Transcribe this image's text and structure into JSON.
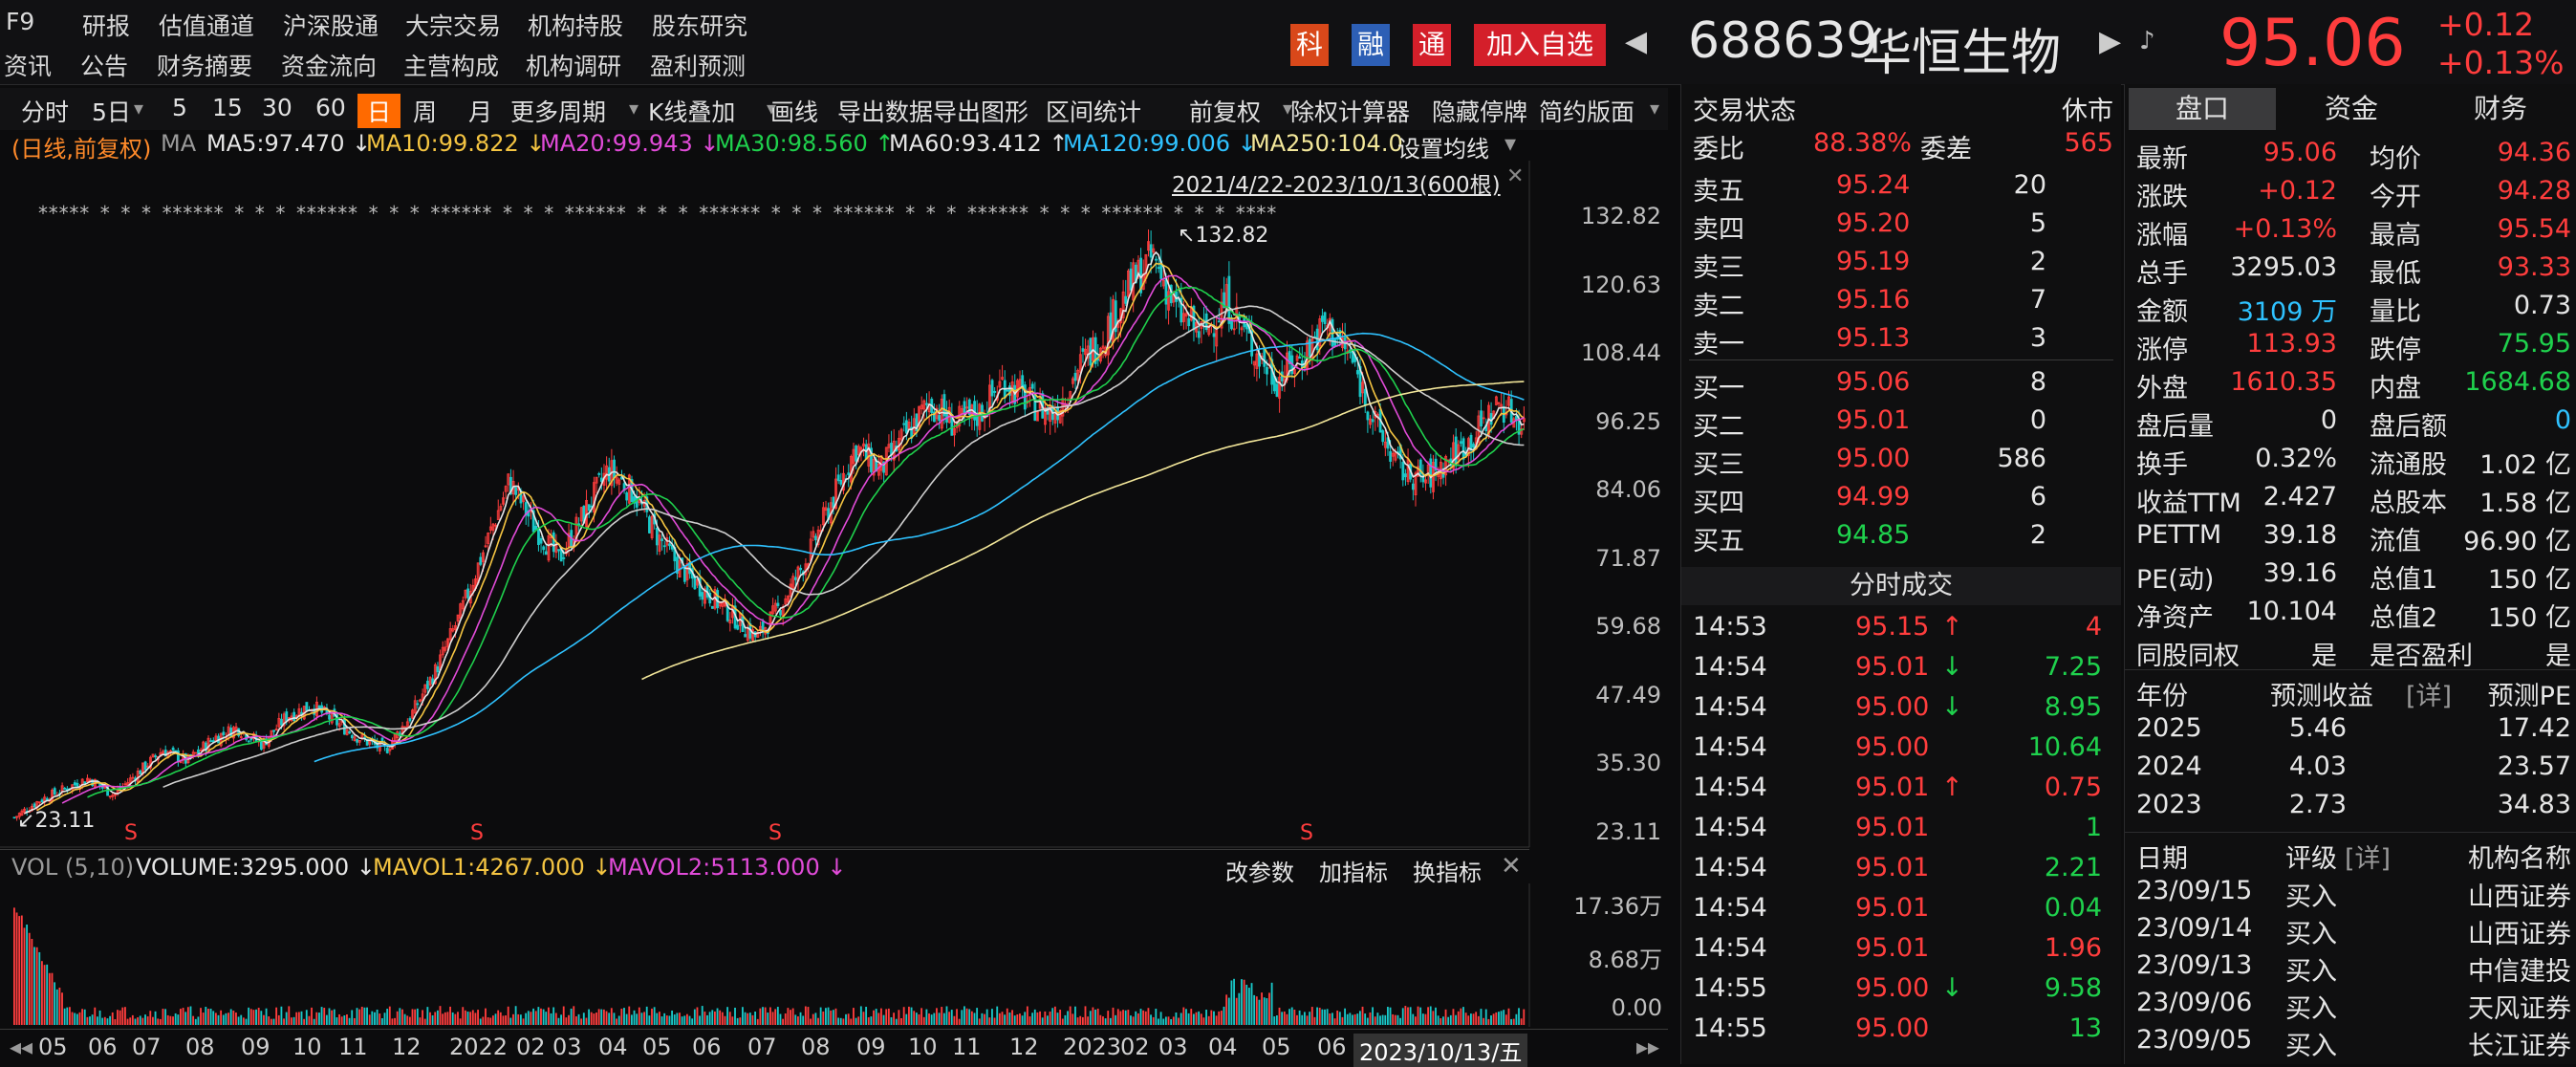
{
  "header": {
    "nav_row1": [
      "F9",
      "研报",
      "估值通道",
      "沪深股通",
      "大宗交易",
      "机构持股",
      "股东研究"
    ],
    "nav_row2": [
      "资讯",
      "公告",
      "财务摘要",
      "资金流向",
      "主营构成",
      "机构调研",
      "盈利预测"
    ],
    "badges": [
      "科",
      "融",
      "通"
    ],
    "add_watch": "加入自选",
    "code": "688639",
    "name": "华恒生物",
    "price": "95.06",
    "change": "+0.12",
    "change_pct": "+0.13%",
    "colors": {
      "up": "#ff3d3d",
      "down": "#1fd14d",
      "accent": "#ff6a00"
    }
  },
  "toolbar": {
    "items": [
      "分时",
      "5日",
      "5",
      "15",
      "30",
      "60",
      "日",
      "周",
      "月",
      "更多周期",
      "K线叠加",
      "画线",
      "导出数据",
      "导出图形",
      "区间统计",
      "前复权",
      "除权计算器",
      "隐藏停牌",
      "简约版面"
    ],
    "active": "日"
  },
  "ma_legend": {
    "mode": "(日线,前复权)",
    "ma": "MA",
    "ma5": "MA5:97.470 ↓",
    "ma10": "MA10:99.822 ↓",
    "ma20": "MA20:99.943 ↓",
    "ma30": "MA30:98.560 ↑",
    "ma60": "MA60:93.412 ↑",
    "ma120": "MA120:99.006 ↓",
    "ma250": "MA250:104.0",
    "set_ma": "设置均线",
    "range": "2021/4/22-2023/10/13(600根)",
    "high_mark": "132.82",
    "low_mark": "23.11"
  },
  "chart_data": {
    "type": "candlestick",
    "ytick_labels": [
      "132.82",
      "120.63",
      "108.44",
      "96.25",
      "84.06",
      "71.87",
      "59.68",
      "47.49",
      "35.30",
      "23.11"
    ],
    "ylim": [
      23.11,
      132.82
    ],
    "x_labels": [
      "05",
      "06",
      "07",
      "08",
      "09",
      "10",
      "11",
      "12",
      "2022",
      "02",
      "03",
      "04",
      "05",
      "06",
      "07",
      "08",
      "09",
      "10",
      "11",
      "12",
      "2023",
      "02",
      "03",
      "04",
      "05",
      "06",
      "2023/10/13/五"
    ],
    "price_path": [
      26,
      29,
      31,
      33,
      30,
      34,
      38,
      36,
      40,
      42,
      39,
      44,
      46,
      43,
      40,
      38,
      44,
      52,
      62,
      74,
      86,
      78,
      72,
      80,
      88,
      84,
      76,
      70,
      66,
      62,
      58,
      64,
      72,
      82,
      92,
      88,
      94,
      100,
      96,
      98,
      104,
      100,
      98,
      106,
      112,
      120,
      126,
      116,
      112,
      118,
      110,
      104,
      108,
      114,
      108,
      96,
      88,
      86,
      90,
      94,
      100,
      96
    ],
    "ma_lines": [
      "MA5",
      "MA10",
      "MA20",
      "MA30",
      "MA60",
      "MA120",
      "MA250"
    ]
  },
  "volume": {
    "label": "VOL",
    "params": "(5,10)",
    "volume": "VOLUME:3295.000 ↓",
    "mavol1": "MAVOL1:4267.000 ↓",
    "mavol2": "MAVOL2:5113.000 ↓",
    "tools": [
      "改参数",
      "加指标",
      "换指标"
    ],
    "ticks": [
      "17.36万",
      "8.68万",
      "0.00"
    ]
  },
  "orderbook": {
    "status_label": "交易状态",
    "status_value": "休市",
    "weibi_label": "委比",
    "weibi_value": "88.38%",
    "weicha_label": "委差",
    "weicha_value": "565",
    "asks": [
      {
        "label": "卖五",
        "price": "95.24",
        "vol": "20"
      },
      {
        "label": "卖四",
        "price": "95.20",
        "vol": "5"
      },
      {
        "label": "卖三",
        "price": "95.19",
        "vol": "2"
      },
      {
        "label": "卖二",
        "price": "95.16",
        "vol": "7"
      },
      {
        "label": "卖一",
        "price": "95.13",
        "vol": "3"
      }
    ],
    "bids": [
      {
        "label": "买一",
        "price": "95.06",
        "vol": "8"
      },
      {
        "label": "买二",
        "price": "95.01",
        "vol": "0"
      },
      {
        "label": "买三",
        "price": "95.00",
        "vol": "586"
      },
      {
        "label": "买四",
        "price": "94.99",
        "vol": "6"
      },
      {
        "label": "买五",
        "price": "94.85",
        "vol": "2"
      }
    ],
    "ticks_title": "分时成交",
    "ticks": [
      {
        "time": "14:53",
        "price": "95.15",
        "arrow": "↑",
        "vol": "4",
        "color": "red"
      },
      {
        "time": "14:54",
        "price": "95.01",
        "arrow": "↓",
        "vol": "7.25",
        "color": "grn"
      },
      {
        "time": "14:54",
        "price": "95.00",
        "arrow": "↓",
        "vol": "8.95",
        "color": "grn"
      },
      {
        "time": "14:54",
        "price": "95.00",
        "arrow": "",
        "vol": "10.64",
        "color": "grn"
      },
      {
        "time": "14:54",
        "price": "95.01",
        "arrow": "↑",
        "vol": "0.75",
        "color": "red"
      },
      {
        "time": "14:54",
        "price": "95.01",
        "arrow": "",
        "vol": "1",
        "color": "grn"
      },
      {
        "time": "14:54",
        "price": "95.01",
        "arrow": "",
        "vol": "2.21",
        "color": "grn"
      },
      {
        "time": "14:54",
        "price": "95.01",
        "arrow": "",
        "vol": "0.04",
        "color": "grn"
      },
      {
        "time": "14:54",
        "price": "95.01",
        "arrow": "",
        "vol": "1.96",
        "color": "red"
      },
      {
        "time": "14:55",
        "price": "95.00",
        "arrow": "↓",
        "vol": "9.58",
        "color": "grn"
      },
      {
        "time": "14:55",
        "price": "95.00",
        "arrow": "",
        "vol": "13",
        "color": "grn"
      }
    ]
  },
  "quote": {
    "tabs": [
      "盘口",
      "资金",
      "财务"
    ],
    "rows": [
      [
        "最新",
        "95.06",
        "red",
        "均价",
        "94.36",
        "red"
      ],
      [
        "涨跌",
        "+0.12",
        "red",
        "今开",
        "94.28",
        "red"
      ],
      [
        "涨幅",
        "+0.13%",
        "red",
        "最高",
        "95.54",
        "red"
      ],
      [
        "总手",
        "3295.03",
        "wht",
        "最低",
        "93.33",
        "red"
      ],
      [
        "金额",
        "3109 万",
        "cyn",
        "量比",
        "0.73",
        "wht"
      ],
      [
        "涨停",
        "113.93",
        "red",
        "跌停",
        "75.95",
        "grn"
      ],
      [
        "外盘",
        "1610.35",
        "red",
        "内盘",
        "1684.68",
        "grn"
      ],
      [
        "盘后量",
        "0",
        "wht",
        "盘后额",
        "0",
        "cyn"
      ],
      [
        "换手",
        "0.32%",
        "wht",
        "流通股",
        "1.02 亿",
        "wht"
      ],
      [
        "收益TTM",
        "2.427",
        "wht",
        "总股本",
        "1.58 亿",
        "wht"
      ],
      [
        "PETTM",
        "39.18",
        "wht",
        "流值",
        "96.90 亿",
        "wht"
      ],
      [
        "PE(动)",
        "39.16",
        "wht",
        "总值1",
        "150 亿",
        "wht"
      ],
      [
        "净资产",
        "10.104",
        "wht",
        "总值2",
        "150 亿",
        "wht"
      ],
      [
        "同股同权",
        "是",
        "wht",
        "是否盈利",
        "是",
        "wht"
      ]
    ],
    "forecast_head": [
      "年份",
      "预测收益",
      "[详]",
      "预测PE"
    ],
    "forecast": [
      [
        "2025",
        "5.46",
        "17.42"
      ],
      [
        "2024",
        "4.03",
        "23.57"
      ],
      [
        "2023",
        "2.73",
        "34.83"
      ]
    ],
    "rating_head": [
      "日期",
      "评级",
      "[详]",
      "机构名称"
    ],
    "ratings": [
      [
        "23/09/15",
        "买入",
        "山西证券"
      ],
      [
        "23/09/14",
        "买入",
        "山西证券"
      ],
      [
        "23/09/13",
        "买入",
        "中信建投"
      ],
      [
        "23/09/06",
        "买入",
        "天风证券"
      ],
      [
        "23/09/05",
        "买入",
        "长江证券"
      ]
    ]
  }
}
